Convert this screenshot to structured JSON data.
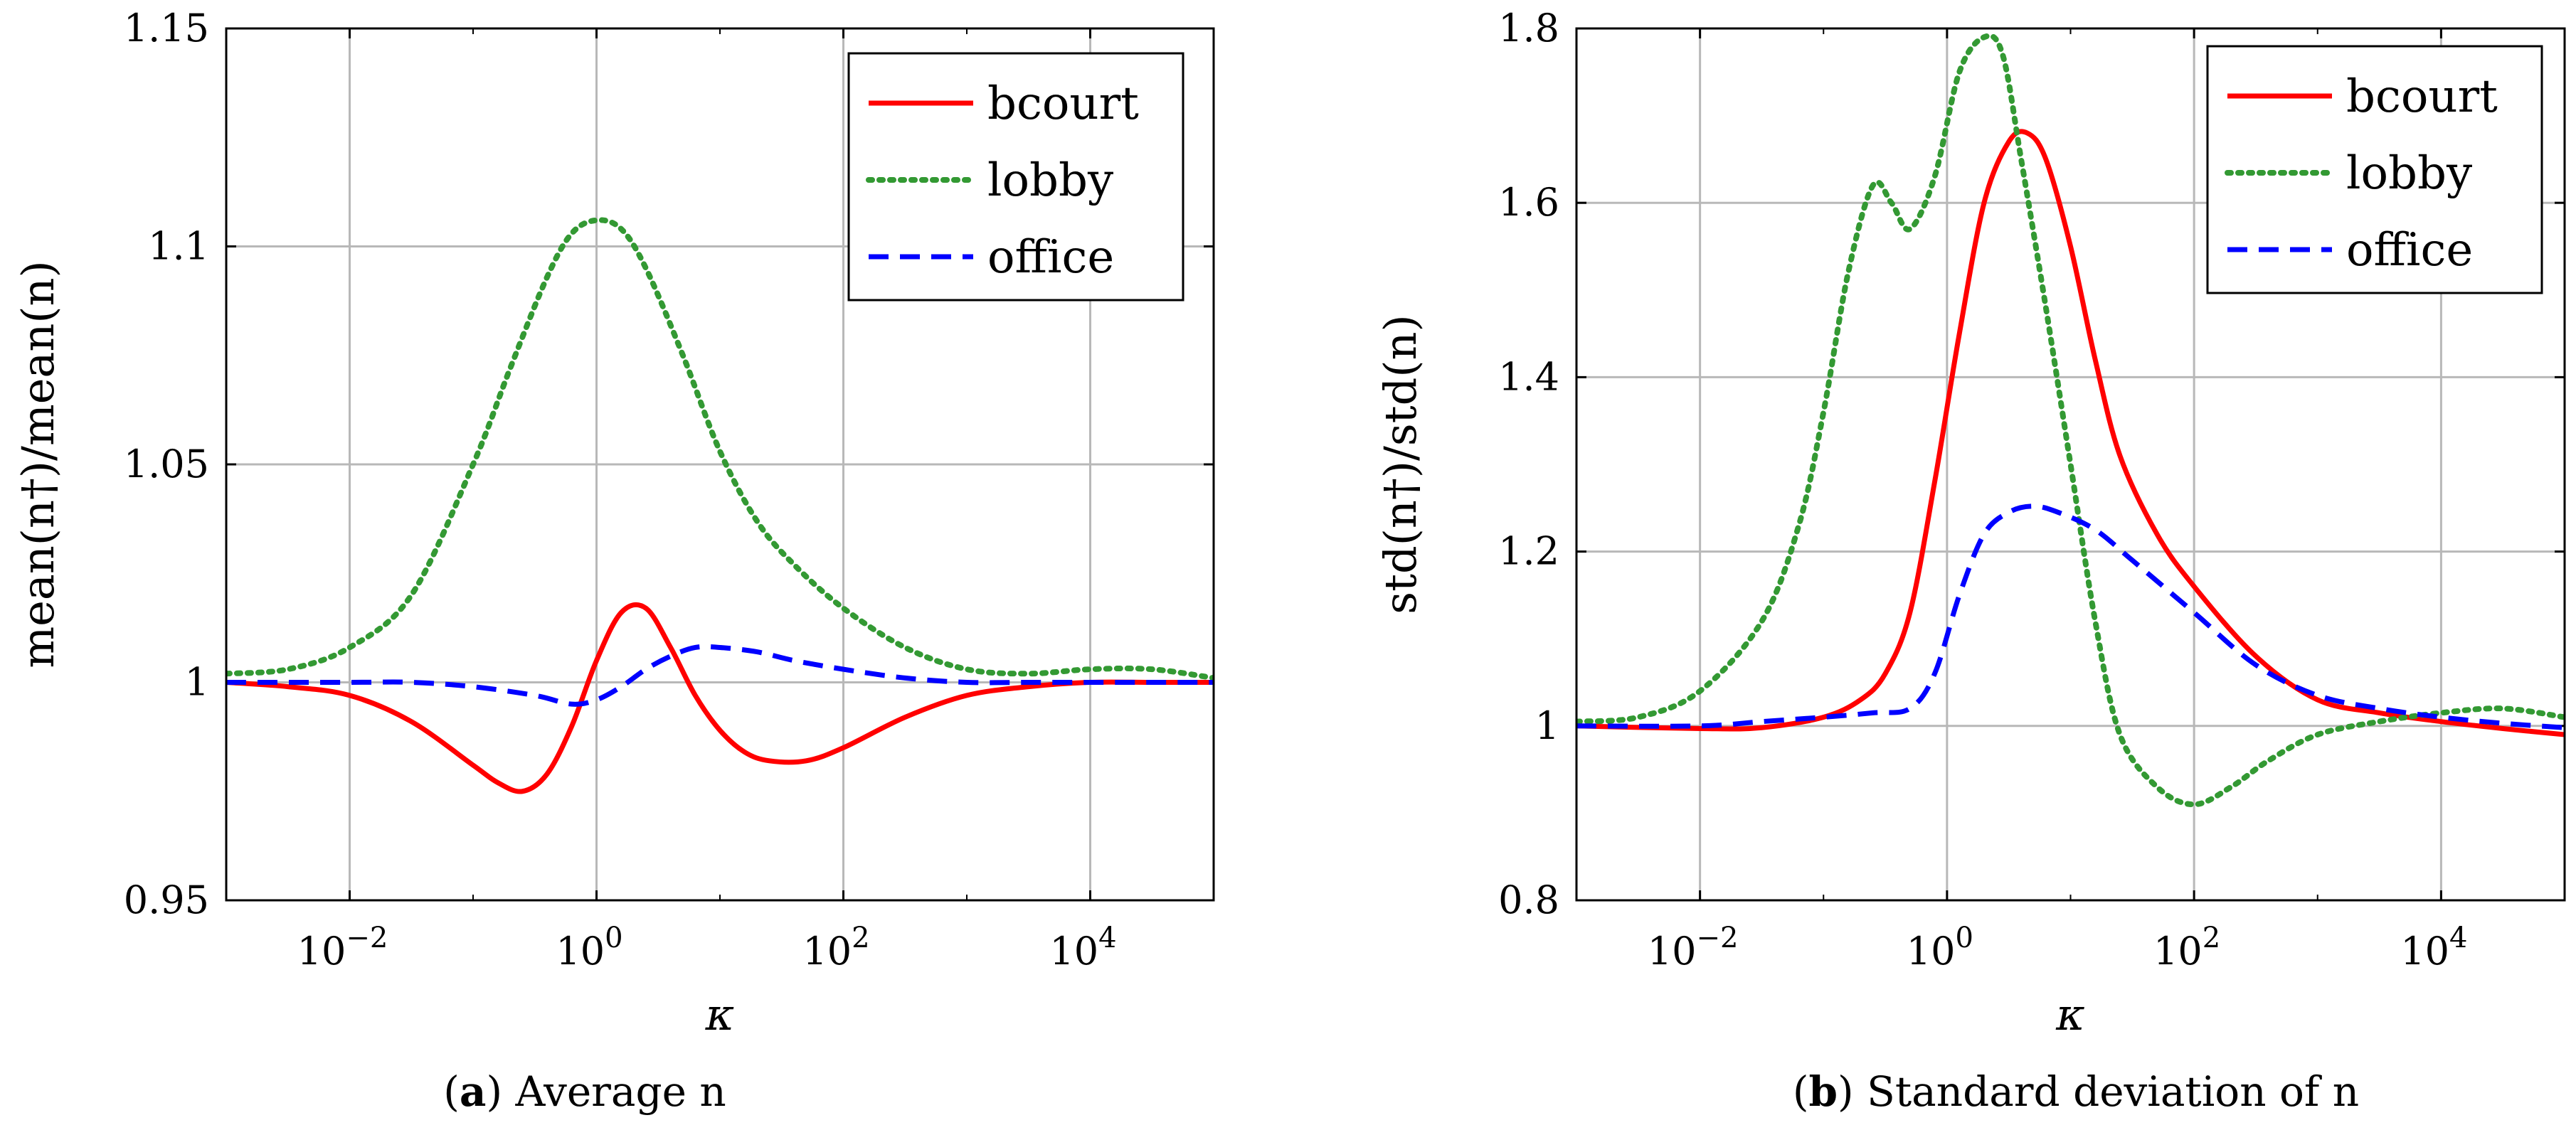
{
  "figure": {
    "panels": [
      {
        "caption_letter": "a",
        "caption_text": "Average n",
        "xlabel": "κ",
        "ylabel": "mean(n†)/mean(n)"
      },
      {
        "caption_letter": "b",
        "caption_text": "Standard deviation of n",
        "xlabel": "κ",
        "ylabel": "std(n†)/std(n)"
      }
    ]
  },
  "colors": {
    "bcourt": "#ff0000",
    "lobby": "#339933",
    "office": "#0000ff",
    "grid": "#b8b8b8"
  },
  "chart_data": [
    {
      "type": "line",
      "title": "(a) Average n",
      "xlabel": "κ",
      "ylabel": "mean(n†)/mean(n)",
      "xscale": "log",
      "xlim_log10": [
        -3,
        5
      ],
      "ylim": [
        0.95,
        1.15
      ],
      "x_ticks": [
        {
          "log10": -2,
          "base": "10",
          "exp": "−2"
        },
        {
          "log10": 0,
          "base": "10",
          "exp": "0"
        },
        {
          "log10": 2,
          "base": "10",
          "exp": "2"
        },
        {
          "log10": 4,
          "base": "10",
          "exp": "4"
        }
      ],
      "y_ticks": [
        {
          "v": 0.95,
          "label": "0.95"
        },
        {
          "v": 1.0,
          "label": "1"
        },
        {
          "v": 1.05,
          "label": "1.05"
        },
        {
          "v": 1.1,
          "label": "1.1"
        },
        {
          "v": 1.15,
          "label": "1.15"
        }
      ],
      "grid": true,
      "legend": "top-right",
      "series": [
        {
          "name": "bcourt",
          "style": "solid",
          "x_log10": [
            -3,
            -2.5,
            -2,
            -1.5,
            -1.0,
            -0.8,
            -0.6,
            -0.4,
            -0.2,
            0.0,
            0.2,
            0.4,
            0.6,
            0.8,
            1.0,
            1.2,
            1.4,
            1.7,
            2.0,
            2.5,
            3.0,
            3.5,
            4.0,
            4.5,
            5.0
          ],
          "y": [
            1.0,
            0.999,
            0.997,
            0.991,
            0.981,
            0.977,
            0.975,
            0.979,
            0.99,
            1.005,
            1.016,
            1.017,
            1.008,
            0.997,
            0.989,
            0.984,
            0.982,
            0.982,
            0.985,
            0.992,
            0.997,
            0.999,
            1.0,
            1.0,
            1.0
          ]
        },
        {
          "name": "lobby",
          "style": "dotted",
          "x_log10": [
            -3,
            -2.5,
            -2,
            -1.5,
            -1.0,
            -0.7,
            -0.4,
            -0.2,
            0.0,
            0.2,
            0.4,
            0.7,
            1.0,
            1.3,
            1.6,
            2.0,
            2.5,
            3.0,
            3.5,
            4.0,
            4.5,
            5.0
          ],
          "y": [
            1.002,
            1.003,
            1.008,
            1.02,
            1.05,
            1.072,
            1.093,
            1.103,
            1.106,
            1.104,
            1.095,
            1.075,
            1.053,
            1.037,
            1.027,
            1.017,
            1.008,
            1.003,
            1.002,
            1.003,
            1.003,
            1.001
          ]
        },
        {
          "name": "office",
          "style": "dashed",
          "x_log10": [
            -3,
            -2,
            -1.5,
            -1.0,
            -0.5,
            -0.2,
            0.0,
            0.2,
            0.4,
            0.6,
            0.8,
            1.0,
            1.3,
            1.6,
            2.0,
            2.5,
            3.0,
            3.5,
            4.0,
            4.5,
            5.0
          ],
          "y": [
            1.0,
            1.0,
            1.0,
            0.999,
            0.997,
            0.995,
            0.996,
            0.999,
            1.003,
            1.006,
            1.008,
            1.008,
            1.007,
            1.005,
            1.003,
            1.001,
            1.0,
            1.0,
            1.0,
            1.0,
            1.0
          ]
        }
      ]
    },
    {
      "type": "line",
      "title": "(b) Standard deviation of n",
      "xlabel": "κ",
      "ylabel": "std(n†)/std(n)",
      "xscale": "log",
      "xlim_log10": [
        -3,
        5
      ],
      "ylim": [
        0.8,
        1.8
      ],
      "x_ticks": [
        {
          "log10": -2,
          "base": "10",
          "exp": "−2"
        },
        {
          "log10": 0,
          "base": "10",
          "exp": "0"
        },
        {
          "log10": 2,
          "base": "10",
          "exp": "2"
        },
        {
          "log10": 4,
          "base": "10",
          "exp": "4"
        }
      ],
      "y_ticks": [
        {
          "v": 0.8,
          "label": "0.8"
        },
        {
          "v": 1.0,
          "label": "1"
        },
        {
          "v": 1.2,
          "label": "1.2"
        },
        {
          "v": 1.4,
          "label": "1.4"
        },
        {
          "v": 1.6,
          "label": "1.6"
        },
        {
          "v": 1.8,
          "label": "1.8"
        }
      ],
      "grid": true,
      "legend": "top-right",
      "series": [
        {
          "name": "bcourt",
          "style": "solid",
          "x_log10": [
            -3,
            -2,
            -1.5,
            -1.0,
            -0.7,
            -0.5,
            -0.3,
            -0.1,
            0.1,
            0.3,
            0.5,
            0.65,
            0.8,
            1.0,
            1.2,
            1.4,
            1.7,
            2.0,
            2.5,
            3.0,
            3.5,
            4.0,
            4.5,
            5.0
          ],
          "y": [
            1.0,
            0.997,
            0.998,
            1.01,
            1.03,
            1.06,
            1.13,
            1.28,
            1.45,
            1.6,
            1.67,
            1.68,
            1.65,
            1.55,
            1.42,
            1.31,
            1.22,
            1.16,
            1.08,
            1.03,
            1.015,
            1.005,
            0.997,
            0.99
          ]
        },
        {
          "name": "lobby",
          "style": "dotted",
          "x_log10": [
            -3,
            -2.5,
            -2,
            -1.5,
            -1.2,
            -1.0,
            -0.8,
            -0.6,
            -0.45,
            -0.3,
            -0.1,
            0.1,
            0.3,
            0.45,
            0.6,
            0.8,
            1.0,
            1.2,
            1.4,
            1.7,
            2.0,
            2.3,
            2.6,
            3.0,
            3.5,
            4.0,
            4.5,
            5.0
          ],
          "y": [
            1.005,
            1.01,
            1.04,
            1.12,
            1.23,
            1.36,
            1.52,
            1.62,
            1.6,
            1.57,
            1.63,
            1.75,
            1.79,
            1.77,
            1.65,
            1.48,
            1.3,
            1.12,
            0.99,
            0.93,
            0.91,
            0.93,
            0.96,
            0.99,
            1.005,
            1.015,
            1.02,
            1.01
          ]
        },
        {
          "name": "office",
          "style": "dashed",
          "x_log10": [
            -3,
            -2,
            -1.5,
            -1.0,
            -0.6,
            -0.3,
            -0.1,
            0.1,
            0.3,
            0.5,
            0.7,
            0.9,
            1.2,
            1.5,
            2.0,
            2.5,
            3.0,
            3.5,
            4.0,
            4.5,
            5.0
          ],
          "y": [
            1.0,
            1.0,
            1.005,
            1.01,
            1.015,
            1.02,
            1.06,
            1.15,
            1.22,
            1.245,
            1.252,
            1.245,
            1.225,
            1.19,
            1.13,
            1.07,
            1.035,
            1.02,
            1.01,
            1.003,
            0.998
          ]
        }
      ]
    }
  ]
}
